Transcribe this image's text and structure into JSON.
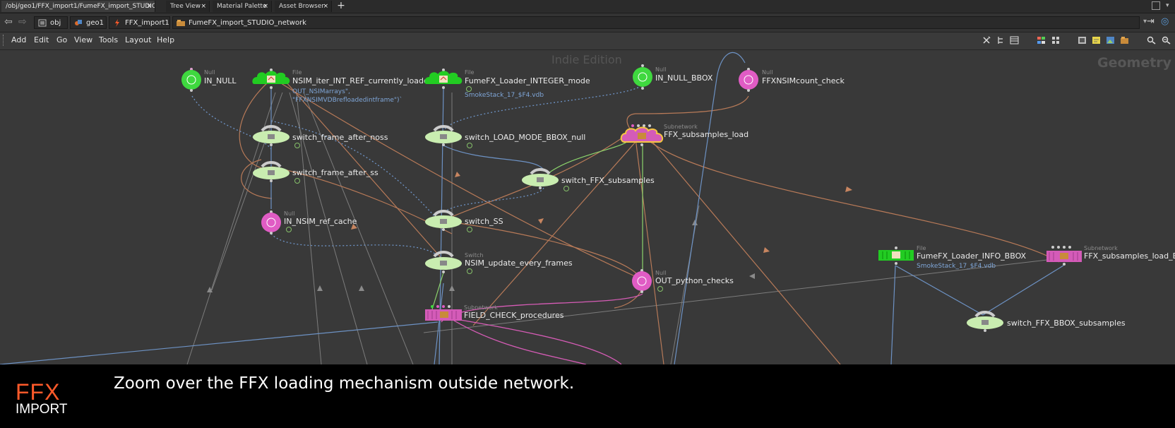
{
  "tabs": [
    {
      "label": "/obj/geo1/FFX_import1/FumeFX_import_STUDIO_netw...",
      "close": "×",
      "active": true
    },
    {
      "label": "Tree View",
      "close": "×",
      "active": false
    },
    {
      "label": "Material Palette",
      "close": "×",
      "active": false
    },
    {
      "label": "Asset Browser",
      "close": "×",
      "active": false
    }
  ],
  "tab_add": "+",
  "breadcrumbs": [
    {
      "label": "obj",
      "icon": "obj-icon"
    },
    {
      "label": "geo1",
      "icon": "geo-icon"
    },
    {
      "label": "FFX_import1",
      "icon": "ffx-icon"
    },
    {
      "label": "FumeFX_import_STUDIO_network",
      "icon": "subnet-icon"
    }
  ],
  "menu": [
    "Add",
    "Edit",
    "Go",
    "View",
    "Tools",
    "Layout",
    "Help"
  ],
  "network": {
    "watermark_edition": "Indie Edition",
    "watermark_context": "Geometry",
    "nodes": [
      {
        "type": "Null",
        "name": "IN_NULL"
      },
      {
        "type": "File",
        "name": "NSIM_iter_INT_REF_currently_loaded",
        "sub": [
          "OUT_NSIMarrays\",",
          "\"FFXNSIMVDBrefloadedintframe\")`"
        ]
      },
      {
        "type": "File",
        "name": "FumeFX_Loader_INTEGER_mode",
        "sub": [
          "SmokeStack_17_$F4.vdb"
        ]
      },
      {
        "type": "Null",
        "name": "IN_NULL_BBOX"
      },
      {
        "type": "Null",
        "name": "FFXNSIMcount_check"
      },
      {
        "type": "",
        "name": "switch_frame_after_noss"
      },
      {
        "type": "",
        "name": "switch_LOAD_MODE_BBOX_null"
      },
      {
        "type": "Subnetwork",
        "name": "FFX_subsamples_load"
      },
      {
        "type": "",
        "name": "switch_frame_after_ss"
      },
      {
        "type": "",
        "name": "switch_FFX_subsamples"
      },
      {
        "type": "Null",
        "name": "IN_NSIM_ref_cache"
      },
      {
        "type": "",
        "name": "switch_SS"
      },
      {
        "type": "Switch",
        "name": "NSIM_update_every_frames"
      },
      {
        "type": "Null",
        "name": "OUT_python_checks"
      },
      {
        "type": "Subnetwork",
        "name": "FIELD_CHECK_procedures"
      },
      {
        "type": "File",
        "name": "FumeFX_Loader_INFO_BBOX",
        "sub": [
          "SmokeStack_17_$F4.vdb"
        ]
      },
      {
        "type": "Subnetwork",
        "name": "FFX_subsamples_load_BBOX"
      },
      {
        "type": "",
        "name": "switch_FFX_BBOX_subsamples"
      }
    ]
  },
  "caption": {
    "logo_ffx": "FFX",
    "logo_import": "IMPORT",
    "text": "Zoom over the FFX loading mechanism outside network."
  },
  "colors": {
    "null_green": "#3fd83f",
    "null_pink": "#e05cc4",
    "switch_green": "#c9edb0",
    "subnet_pink": "#d45bb8",
    "file_green": "#22cc22",
    "wire_orange": "#c78560",
    "wire_blue": "#6d92c4",
    "wire_gray": "#8a8a8a",
    "logo_orange": "#ff5a2a"
  }
}
